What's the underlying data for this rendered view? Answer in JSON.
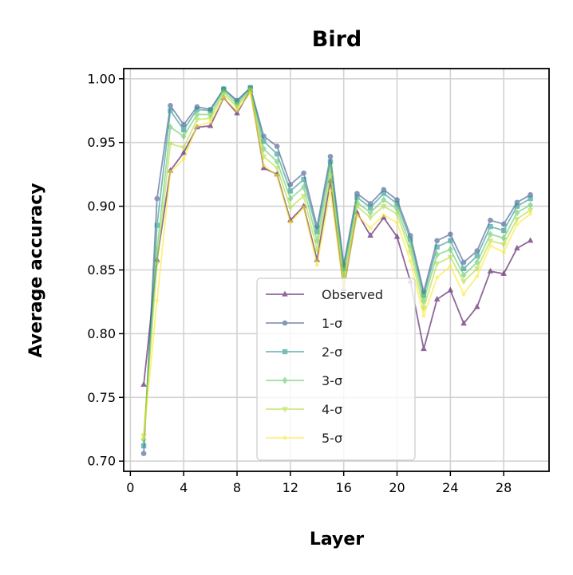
{
  "chart_data": {
    "type": "line",
    "title": "Bird",
    "xlabel": "Layer",
    "ylabel": "Average accuracy",
    "xlim": [
      -0.5,
      31.4
    ],
    "ylim": [
      0.692,
      1.008
    ],
    "xticks": [
      0,
      4,
      8,
      12,
      16,
      20,
      24,
      28
    ],
    "xtick_labels": [
      "0",
      "4",
      "8",
      "12",
      "16",
      "20",
      "24",
      "28"
    ],
    "yticks": [
      0.7,
      0.75,
      0.8,
      0.85,
      0.9,
      0.95,
      1.0
    ],
    "ytick_labels": [
      "0.70",
      "0.75",
      "0.80",
      "0.85",
      "0.90",
      "0.95",
      "1.00"
    ],
    "grid": true,
    "legend_position": "lower-center",
    "x": [
      1,
      2,
      3,
      4,
      5,
      6,
      7,
      8,
      9,
      10,
      11,
      12,
      13,
      14,
      15,
      16,
      17,
      18,
      19,
      20,
      21,
      22,
      23,
      24,
      25,
      26,
      27,
      28,
      29,
      30
    ],
    "series": [
      {
        "name": "Observed",
        "marker": "triangle",
        "color": "#440154",
        "values": [
          0.76,
          0.858,
          0.928,
          0.942,
          0.962,
          0.963,
          0.985,
          0.973,
          0.991,
          0.93,
          0.925,
          0.889,
          0.9,
          0.858,
          0.92,
          0.835,
          0.895,
          0.877,
          0.891,
          0.876,
          0.841,
          0.788,
          0.827,
          0.834,
          0.808,
          0.821,
          0.849,
          0.847,
          0.867,
          0.873
        ]
      },
      {
        "name": "1-σ",
        "marker": "circle",
        "color": "#3b528b",
        "values": [
          0.706,
          0.906,
          0.979,
          0.964,
          0.978,
          0.976,
          0.992,
          0.983,
          0.993,
          0.955,
          0.947,
          0.917,
          0.926,
          0.884,
          0.939,
          0.854,
          0.91,
          0.902,
          0.913,
          0.905,
          0.877,
          0.833,
          0.873,
          0.878,
          0.856,
          0.865,
          0.889,
          0.886,
          0.903,
          0.909
        ]
      },
      {
        "name": "2-σ",
        "marker": "square",
        "color": "#21918c",
        "values": [
          0.712,
          0.885,
          0.975,
          0.96,
          0.976,
          0.975,
          0.992,
          0.982,
          0.993,
          0.951,
          0.941,
          0.912,
          0.921,
          0.88,
          0.935,
          0.851,
          0.907,
          0.899,
          0.91,
          0.902,
          0.874,
          0.83,
          0.868,
          0.873,
          0.851,
          0.861,
          0.884,
          0.881,
          0.9,
          0.906
        ]
      },
      {
        "name": "3-σ",
        "marker": "diamond",
        "color": "#5ec962",
        "values": [
          0.717,
          0.866,
          0.962,
          0.955,
          0.972,
          0.972,
          0.99,
          0.98,
          0.992,
          0.945,
          0.935,
          0.906,
          0.915,
          0.873,
          0.93,
          0.846,
          0.903,
          0.895,
          0.905,
          0.898,
          0.869,
          0.826,
          0.862,
          0.866,
          0.846,
          0.856,
          0.878,
          0.875,
          0.895,
          0.901
        ]
      },
      {
        "name": "4-σ",
        "marker": "triangle-down",
        "color": "#addc30",
        "values": [
          0.72,
          0.855,
          0.949,
          0.946,
          0.968,
          0.969,
          0.988,
          0.978,
          0.991,
          0.939,
          0.93,
          0.899,
          0.908,
          0.866,
          0.924,
          0.842,
          0.9,
          0.891,
          0.9,
          0.894,
          0.864,
          0.82,
          0.855,
          0.86,
          0.841,
          0.851,
          0.873,
          0.87,
          0.89,
          0.897
        ]
      },
      {
        "name": "5-σ",
        "marker": "point",
        "color": "#fde725",
        "values": [
          0.718,
          0.826,
          0.927,
          0.937,
          0.963,
          0.966,
          0.985,
          0.975,
          0.989,
          0.932,
          0.924,
          0.887,
          0.899,
          0.854,
          0.912,
          0.836,
          0.893,
          0.883,
          0.893,
          0.887,
          0.857,
          0.814,
          0.844,
          0.853,
          0.831,
          0.845,
          0.869,
          0.864,
          0.886,
          0.894
        ]
      }
    ]
  }
}
